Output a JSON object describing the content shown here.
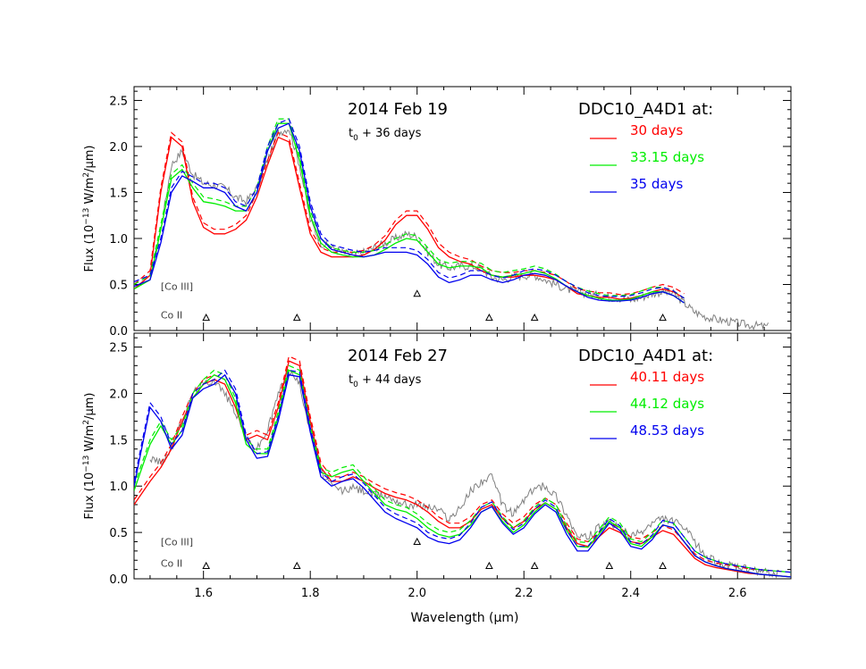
{
  "xlabel": "Wavelength (μm)",
  "ylabel_prefix": "Flux (10",
  "ylabel_exp": "−13",
  "ylabel_suffix": " W/m",
  "ylabel_sq": "2",
  "ylabel_end": "/μm)",
  "colors": {
    "red": "#ff0000",
    "green": "#00ee00",
    "blue": "#0000ee",
    "observed": "#808080",
    "axis": "#000000",
    "annotation": "#404040"
  },
  "chart_data": [
    {
      "type": "line",
      "title": "2014 Feb 19",
      "subtitle_base": "t",
      "subtitle_sub": "0",
      "subtitle_rest": " + 36 days",
      "legend_title": "DDC10_A4D1 at:",
      "legend_position": "top-right",
      "xlim": [
        1.47,
        2.7
      ],
      "ylim": [
        0.0,
        2.65
      ],
      "x_ticks": [
        "1.6",
        "1.8",
        "2.0",
        "2.2",
        "2.4",
        "2.6"
      ],
      "y_ticks": [
        "0.0",
        "0.5",
        "1.0",
        "1.5",
        "2.0",
        "2.5"
      ],
      "line_labels": [
        {
          "text": "[Co III]",
          "x": 1.52,
          "y": 0.48
        },
        {
          "text": "Co II",
          "x": 1.52,
          "y": 0.17
        }
      ],
      "markers_co3": [
        2.0
      ],
      "markers_co2": [
        1.605,
        1.775,
        2.135,
        2.22,
        2.46
      ],
      "observed": {
        "x": [
          1.5,
          1.52,
          1.54,
          1.56,
          1.58,
          1.6,
          1.62,
          1.64,
          1.66,
          1.68,
          1.7,
          1.72,
          1.74,
          1.76,
          1.78,
          1.8,
          1.82,
          1.84,
          1.86,
          1.88,
          1.9,
          1.92,
          1.94,
          1.96,
          1.98,
          2.0,
          2.02,
          2.04,
          2.06,
          2.08,
          2.1,
          2.12,
          2.14,
          2.16,
          2.18,
          2.2,
          2.22,
          2.24,
          2.26,
          2.28,
          2.3,
          2.32,
          2.34,
          2.36,
          2.38,
          2.4,
          2.42,
          2.44,
          2.46,
          2.48,
          2.5,
          2.52,
          2.54,
          2.56,
          2.58,
          2.6,
          2.62,
          2.64,
          2.66
        ],
        "y": [
          0.55,
          1.1,
          1.8,
          1.95,
          1.7,
          1.6,
          1.58,
          1.55,
          1.45,
          1.4,
          1.55,
          1.85,
          2.15,
          2.2,
          1.8,
          1.2,
          0.95,
          0.9,
          0.85,
          0.82,
          0.85,
          0.9,
          0.95,
          1.0,
          1.05,
          1.02,
          0.85,
          0.72,
          0.68,
          0.7,
          0.7,
          0.68,
          0.58,
          0.55,
          0.58,
          0.6,
          0.6,
          0.55,
          0.5,
          0.45,
          0.42,
          0.4,
          0.38,
          0.36,
          0.35,
          0.33,
          0.36,
          0.4,
          0.42,
          0.4,
          0.3,
          0.2,
          0.15,
          0.12,
          0.1,
          0.08,
          0.06,
          0.05,
          0.04
        ]
      },
      "series": [
        {
          "name": "30 days",
          "color": "red",
          "x": [
            1.47,
            1.5,
            1.52,
            1.54,
            1.56,
            1.58,
            1.6,
            1.62,
            1.64,
            1.66,
            1.68,
            1.7,
            1.72,
            1.74,
            1.76,
            1.78,
            1.8,
            1.82,
            1.84,
            1.86,
            1.88,
            1.9,
            1.92,
            1.94,
            1.96,
            1.98,
            2.0,
            2.02,
            2.04,
            2.06,
            2.08,
            2.1,
            2.12,
            2.14,
            2.16,
            2.18,
            2.2,
            2.22,
            2.24,
            2.26,
            2.28,
            2.3,
            2.32,
            2.34,
            2.36,
            2.38,
            2.4,
            2.42,
            2.44,
            2.46,
            2.48,
            2.5
          ],
          "y": [
            0.45,
            0.6,
            1.5,
            2.1,
            2.0,
            1.4,
            1.12,
            1.05,
            1.05,
            1.1,
            1.2,
            1.45,
            1.8,
            2.1,
            2.05,
            1.55,
            1.05,
            0.85,
            0.8,
            0.8,
            0.8,
            0.82,
            0.88,
            0.98,
            1.15,
            1.25,
            1.25,
            1.1,
            0.9,
            0.8,
            0.75,
            0.72,
            0.65,
            0.6,
            0.58,
            0.58,
            0.6,
            0.6,
            0.58,
            0.55,
            0.48,
            0.4,
            0.38,
            0.36,
            0.36,
            0.34,
            0.35,
            0.38,
            0.42,
            0.45,
            0.42,
            0.35
          ]
        },
        {
          "name": "33.15 days",
          "color": "green",
          "x": [
            1.47,
            1.5,
            1.52,
            1.54,
            1.56,
            1.58,
            1.6,
            1.62,
            1.64,
            1.66,
            1.68,
            1.7,
            1.72,
            1.74,
            1.76,
            1.78,
            1.8,
            1.82,
            1.84,
            1.86,
            1.88,
            1.9,
            1.92,
            1.94,
            1.96,
            1.98,
            2.0,
            2.02,
            2.04,
            2.06,
            2.08,
            2.1,
            2.12,
            2.14,
            2.16,
            2.18,
            2.2,
            2.22,
            2.24,
            2.26,
            2.28,
            2.3,
            2.32,
            2.34,
            2.36,
            2.38,
            2.4,
            2.42,
            2.44,
            2.46,
            2.48,
            2.5
          ],
          "y": [
            0.45,
            0.55,
            1.1,
            1.65,
            1.75,
            1.55,
            1.4,
            1.38,
            1.35,
            1.3,
            1.3,
            1.5,
            1.95,
            2.25,
            2.25,
            1.85,
            1.25,
            0.95,
            0.85,
            0.82,
            0.8,
            0.8,
            0.82,
            0.88,
            0.95,
            1.0,
            0.98,
            0.85,
            0.72,
            0.68,
            0.7,
            0.7,
            0.68,
            0.6,
            0.58,
            0.6,
            0.62,
            0.65,
            0.62,
            0.56,
            0.48,
            0.42,
            0.38,
            0.35,
            0.33,
            0.33,
            0.34,
            0.38,
            0.42,
            0.42,
            0.38,
            0.3
          ]
        },
        {
          "name": "35 days",
          "color": "blue",
          "x": [
            1.47,
            1.5,
            1.52,
            1.54,
            1.56,
            1.58,
            1.6,
            1.62,
            1.64,
            1.66,
            1.68,
            1.7,
            1.72,
            1.74,
            1.76,
            1.78,
            1.8,
            1.82,
            1.84,
            1.86,
            1.88,
            1.9,
            1.92,
            1.94,
            1.96,
            1.98,
            2.0,
            2.02,
            2.04,
            2.06,
            2.08,
            2.1,
            2.12,
            2.14,
            2.16,
            2.18,
            2.2,
            2.22,
            2.24,
            2.26,
            2.28,
            2.3,
            2.32,
            2.34,
            2.36,
            2.38,
            2.4,
            2.42,
            2.44,
            2.46,
            2.48,
            2.5
          ],
          "y": [
            0.48,
            0.55,
            0.95,
            1.5,
            1.68,
            1.62,
            1.55,
            1.55,
            1.5,
            1.35,
            1.3,
            1.5,
            1.95,
            2.2,
            2.25,
            1.95,
            1.35,
            1.0,
            0.88,
            0.85,
            0.82,
            0.8,
            0.82,
            0.85,
            0.85,
            0.85,
            0.82,
            0.72,
            0.58,
            0.52,
            0.55,
            0.6,
            0.6,
            0.55,
            0.52,
            0.55,
            0.6,
            0.62,
            0.6,
            0.55,
            0.48,
            0.42,
            0.36,
            0.33,
            0.32,
            0.32,
            0.33,
            0.36,
            0.4,
            0.42,
            0.38,
            0.3
          ]
        }
      ]
    },
    {
      "type": "line",
      "title": "2014 Feb 27",
      "subtitle_base": "t",
      "subtitle_sub": "0",
      "subtitle_rest": " + 44 days",
      "legend_title": "DDC10_A4D1 at:",
      "legend_position": "top-right",
      "xlim": [
        1.47,
        2.7
      ],
      "ylim": [
        0.0,
        2.65
      ],
      "x_ticks": [
        "1.6",
        "1.8",
        "2.0",
        "2.2",
        "2.4",
        "2.6"
      ],
      "y_ticks": [
        "0.0",
        "0.5",
        "1.0",
        "1.5",
        "2.0",
        "2.5"
      ],
      "line_labels": [
        {
          "text": "[Co III]",
          "x": 1.52,
          "y": 0.4
        },
        {
          "text": "Co II",
          "x": 1.52,
          "y": 0.17
        }
      ],
      "markers_co3": [
        2.0
      ],
      "markers_co2": [
        1.605,
        1.775,
        2.135,
        2.22,
        2.36,
        2.46
      ],
      "observed": {
        "x": [
          1.5,
          1.52,
          1.54,
          1.56,
          1.58,
          1.6,
          1.62,
          1.64,
          1.66,
          1.68,
          1.7,
          1.72,
          1.74,
          1.76,
          1.78,
          1.8,
          1.82,
          1.84,
          1.86,
          1.88,
          1.9,
          1.92,
          1.94,
          1.96,
          1.98,
          2.0,
          2.02,
          2.04,
          2.06,
          2.08,
          2.1,
          2.12,
          2.14,
          2.16,
          2.18,
          2.2,
          2.22,
          2.24,
          2.26,
          2.28,
          2.3,
          2.32,
          2.34,
          2.36,
          2.38,
          2.4,
          2.42,
          2.44,
          2.46,
          2.48,
          2.5,
          2.52,
          2.54,
          2.56,
          2.58,
          2.6,
          2.62,
          2.64,
          2.66,
          2.68
        ],
        "y": [
          1.3,
          1.25,
          1.4,
          1.7,
          2.0,
          2.1,
          2.15,
          2.0,
          1.8,
          1.5,
          1.4,
          1.6,
          2.0,
          2.25,
          2.1,
          1.6,
          1.15,
          1.0,
          0.95,
          0.98,
          0.95,
          0.9,
          0.9,
          0.85,
          0.8,
          0.8,
          0.78,
          0.75,
          0.65,
          0.75,
          0.95,
          1.05,
          1.1,
          0.8,
          0.7,
          0.85,
          0.98,
          1.0,
          0.9,
          0.7,
          0.45,
          0.45,
          0.55,
          0.6,
          0.55,
          0.45,
          0.5,
          0.6,
          0.65,
          0.62,
          0.55,
          0.4,
          0.25,
          0.18,
          0.15,
          0.12,
          0.1,
          0.08,
          0.06,
          0.05
        ]
      },
      "series": [
        {
          "name": "40.11 days",
          "color": "red",
          "x": [
            1.47,
            1.5,
            1.52,
            1.54,
            1.56,
            1.58,
            1.6,
            1.62,
            1.64,
            1.66,
            1.68,
            1.7,
            1.72,
            1.74,
            1.76,
            1.78,
            1.8,
            1.82,
            1.84,
            1.86,
            1.88,
            1.9,
            1.92,
            1.94,
            1.96,
            1.98,
            2.0,
            2.02,
            2.04,
            2.06,
            2.08,
            2.1,
            2.12,
            2.14,
            2.16,
            2.18,
            2.2,
            2.22,
            2.24,
            2.26,
            2.28,
            2.3,
            2.32,
            2.34,
            2.36,
            2.38,
            2.4,
            2.42,
            2.44,
            2.46,
            2.48,
            2.5,
            2.52,
            2.54,
            2.56,
            2.58,
            2.6,
            2.62,
            2.64,
            2.66,
            2.68,
            2.7
          ],
          "y": [
            0.8,
            1.05,
            1.2,
            1.4,
            1.7,
            1.95,
            2.1,
            2.15,
            2.1,
            1.85,
            1.5,
            1.55,
            1.5,
            1.85,
            2.35,
            2.3,
            1.7,
            1.2,
            1.05,
            1.05,
            1.1,
            1.05,
            0.98,
            0.92,
            0.88,
            0.85,
            0.8,
            0.72,
            0.62,
            0.55,
            0.55,
            0.62,
            0.75,
            0.8,
            0.65,
            0.55,
            0.62,
            0.75,
            0.82,
            0.75,
            0.55,
            0.38,
            0.35,
            0.45,
            0.55,
            0.5,
            0.4,
            0.38,
            0.45,
            0.52,
            0.48,
            0.35,
            0.22,
            0.15,
            0.12,
            0.1,
            0.08,
            0.06,
            0.05,
            0.04,
            0.03,
            0.02
          ]
        },
        {
          "name": "44.12 days",
          "color": "green",
          "x": [
            1.47,
            1.5,
            1.52,
            1.54,
            1.56,
            1.58,
            1.6,
            1.62,
            1.64,
            1.66,
            1.68,
            1.7,
            1.72,
            1.74,
            1.76,
            1.78,
            1.8,
            1.82,
            1.84,
            1.86,
            1.88,
            1.9,
            1.92,
            1.94,
            1.96,
            1.98,
            2.0,
            2.02,
            2.04,
            2.06,
            2.08,
            2.1,
            2.12,
            2.14,
            2.16,
            2.18,
            2.2,
            2.22,
            2.24,
            2.26,
            2.28,
            2.3,
            2.32,
            2.34,
            2.36,
            2.38,
            2.4,
            2.42,
            2.44,
            2.46,
            2.48,
            2.5,
            2.52,
            2.54,
            2.56,
            2.58,
            2.6,
            2.62,
            2.64,
            2.66,
            2.68,
            2.7
          ],
          "y": [
            0.95,
            1.45,
            1.65,
            1.45,
            1.6,
            1.95,
            2.1,
            2.2,
            2.15,
            1.9,
            1.45,
            1.35,
            1.35,
            1.75,
            2.25,
            2.2,
            1.6,
            1.15,
            1.1,
            1.15,
            1.18,
            1.05,
            0.92,
            0.8,
            0.75,
            0.72,
            0.65,
            0.55,
            0.48,
            0.45,
            0.48,
            0.58,
            0.72,
            0.78,
            0.62,
            0.5,
            0.58,
            0.72,
            0.82,
            0.75,
            0.52,
            0.35,
            0.34,
            0.48,
            0.62,
            0.55,
            0.38,
            0.35,
            0.45,
            0.58,
            0.55,
            0.4,
            0.25,
            0.18,
            0.14,
            0.11,
            0.09,
            0.07,
            0.05,
            0.04,
            0.03,
            0.02
          ]
        },
        {
          "name": "48.53 days",
          "color": "blue",
          "x": [
            1.47,
            1.5,
            1.52,
            1.54,
            1.56,
            1.58,
            1.6,
            1.62,
            1.64,
            1.66,
            1.68,
            1.7,
            1.72,
            1.74,
            1.76,
            1.78,
            1.8,
            1.82,
            1.84,
            1.86,
            1.88,
            1.9,
            1.92,
            1.94,
            1.96,
            1.98,
            2.0,
            2.02,
            2.04,
            2.06,
            2.08,
            2.1,
            2.12,
            2.14,
            2.16,
            2.18,
            2.2,
            2.22,
            2.24,
            2.26,
            2.28,
            2.3,
            2.32,
            2.34,
            2.36,
            2.38,
            2.4,
            2.42,
            2.44,
            2.46,
            2.48,
            2.5,
            2.52,
            2.54,
            2.56,
            2.58,
            2.6,
            2.62,
            2.64,
            2.66,
            2.68,
            2.7
          ],
          "y": [
            1.0,
            1.85,
            1.7,
            1.4,
            1.55,
            1.95,
            2.05,
            2.1,
            2.2,
            2.0,
            1.5,
            1.3,
            1.32,
            1.7,
            2.2,
            2.18,
            1.58,
            1.1,
            1.0,
            1.05,
            1.08,
            0.98,
            0.85,
            0.72,
            0.65,
            0.6,
            0.55,
            0.45,
            0.4,
            0.38,
            0.42,
            0.55,
            0.72,
            0.78,
            0.6,
            0.48,
            0.55,
            0.7,
            0.8,
            0.72,
            0.48,
            0.3,
            0.3,
            0.45,
            0.6,
            0.52,
            0.35,
            0.32,
            0.42,
            0.58,
            0.55,
            0.4,
            0.25,
            0.18,
            0.14,
            0.11,
            0.09,
            0.07,
            0.05,
            0.04,
            0.03,
            0.02
          ]
        }
      ]
    }
  ]
}
